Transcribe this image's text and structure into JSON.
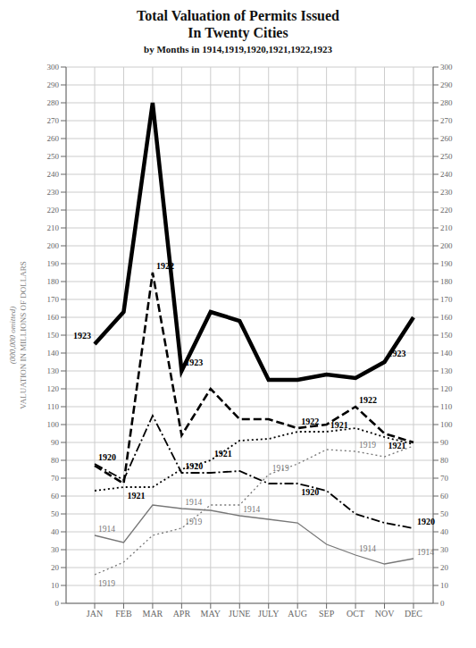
{
  "chart_data": {
    "type": "line",
    "title": [
      "Total Valuation of Permits Issued",
      "In Twenty Cities"
    ],
    "subtitle": "by Months in 1914,1919,1920,1921,1922,1923",
    "ylabel": "VALUATION IN MILLIONS OF DOLLARS",
    "ylabel_note": "(000,000 omitted)",
    "categories": [
      "JAN",
      "FEB",
      "MAR",
      "APR",
      "MAY",
      "JUNE",
      "JULY",
      "AUG",
      "SEP",
      "OCT",
      "NOV",
      "DEC"
    ],
    "series": [
      {
        "name": "1923",
        "color": "#000000",
        "line_style": "solid",
        "values": [
          145,
          163,
          280,
          130,
          163,
          158,
          125,
          125,
          128,
          126,
          135,
          160
        ]
      },
      {
        "name": "1922",
        "color": "#000000",
        "line_style": "dashed",
        "values": [
          77,
          67,
          185,
          94,
          120,
          103,
          103,
          98,
          100,
          110,
          95,
          90
        ]
      },
      {
        "name": "1921",
        "color": "#000000",
        "line_style": "dotted",
        "values": [
          63,
          65,
          65,
          75,
          80,
          91,
          92,
          96,
          96,
          98,
          93,
          89
        ]
      },
      {
        "name": "1920",
        "color": "#000000",
        "line_style": "dashdot",
        "values": [
          78,
          69,
          105,
          73,
          73,
          74,
          67,
          67,
          63,
          50,
          45,
          42
        ]
      },
      {
        "name": "1919",
        "color": "#777777",
        "line_style": "dotted",
        "values": [
          16,
          23,
          38,
          42,
          55,
          55,
          72,
          78,
          86,
          85,
          82,
          88
        ]
      },
      {
        "name": "1914",
        "color": "#777777",
        "line_style": "solid",
        "values": [
          38,
          34,
          55,
          53,
          52,
          49,
          47,
          45,
          33,
          27,
          22,
          25
        ]
      }
    ],
    "ylim": [
      0,
      300
    ],
    "yticks": [
      0,
      10,
      20,
      30,
      40,
      50,
      60,
      70,
      80,
      90,
      100,
      110,
      120,
      130,
      140,
      150,
      160,
      170,
      180,
      190,
      200,
      210,
      220,
      230,
      240,
      250,
      260,
      270,
      280,
      290,
      300
    ],
    "y2lim": [
      0,
      300
    ],
    "y2ticks": [
      0,
      10,
      20,
      30,
      40,
      50,
      60,
      70,
      80,
      90,
      100,
      110,
      120,
      130,
      140,
      150,
      160,
      170,
      180,
      190,
      200,
      210,
      220,
      230,
      240,
      250,
      260,
      270,
      280,
      290,
      300
    ],
    "grid": true,
    "annotations": [
      {
        "series": "1923",
        "category": "JAN",
        "position": "above-left"
      },
      {
        "series": "1923",
        "category": "APR",
        "position": "above-right"
      },
      {
        "series": "1923",
        "category": "NOV",
        "position": "above-right"
      },
      {
        "series": "1922",
        "category": "MAR",
        "position": "above-right"
      },
      {
        "series": "1922",
        "category": "AUG",
        "position": "above-right"
      },
      {
        "series": "1922",
        "category": "OCT",
        "position": "above-right"
      },
      {
        "series": "1921",
        "category": "FEB",
        "position": "below-right"
      },
      {
        "series": "1921",
        "category": "MAY",
        "position": "above-right"
      },
      {
        "series": "1921",
        "category": "SEP",
        "position": "above-right"
      },
      {
        "series": "1921",
        "category": "NOV",
        "position": "below-right"
      },
      {
        "series": "1920",
        "category": "JAN",
        "position": "above-right"
      },
      {
        "series": "1920",
        "category": "APR",
        "position": "above-right"
      },
      {
        "series": "1920",
        "category": "AUG",
        "position": "below-right"
      },
      {
        "series": "1920",
        "category": "DEC",
        "position": "above-right"
      },
      {
        "series": "1919",
        "category": "JAN",
        "position": "below-right"
      },
      {
        "series": "1919",
        "category": "APR",
        "position": "above-right"
      },
      {
        "series": "1919",
        "category": "JULY",
        "position": "above-right"
      },
      {
        "series": "1919",
        "category": "OCT",
        "position": "above-right"
      },
      {
        "series": "1914",
        "category": "JAN",
        "position": "above-right"
      },
      {
        "series": "1914",
        "category": "APR",
        "position": "above-right"
      },
      {
        "series": "1914",
        "category": "JUNE",
        "position": "above-right"
      },
      {
        "series": "1914",
        "category": "OCT",
        "position": "above-right"
      },
      {
        "series": "1914",
        "category": "DEC",
        "position": "above-right"
      }
    ]
  }
}
